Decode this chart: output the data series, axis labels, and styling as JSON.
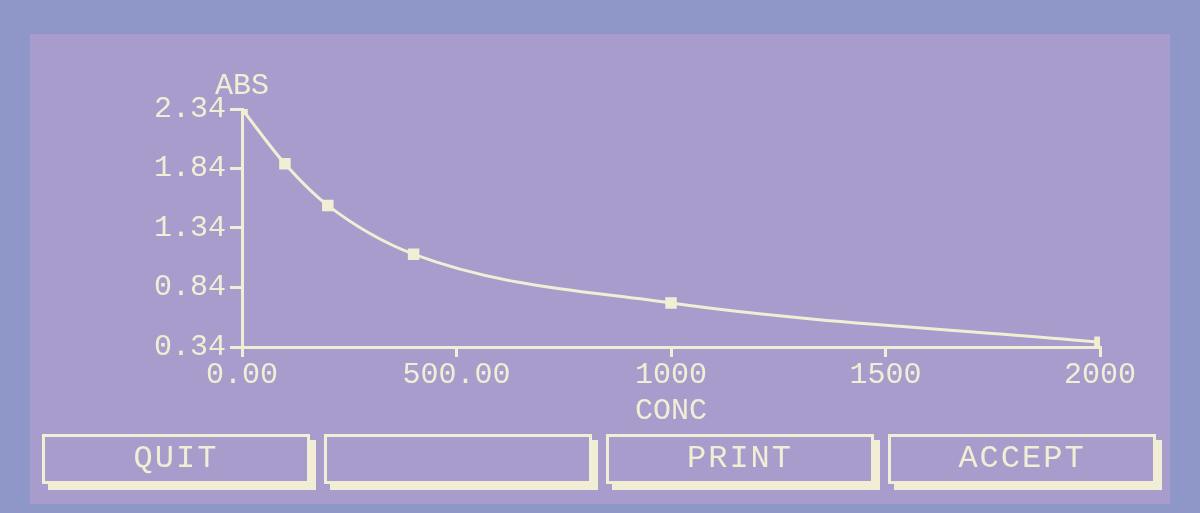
{
  "chart_data": {
    "type": "line",
    "xlabel": "CONC",
    "ylabel": "ABS",
    "x": [
      0,
      100,
      200,
      400,
      1000,
      2000
    ],
    "series": [
      {
        "color": "#f2eed6",
        "values": [
          2.34,
          1.88,
          1.53,
          1.12,
          0.71,
          0.38
        ]
      }
    ],
    "xlim": [
      0,
      2000
    ],
    "xticks": [
      {
        "value": 0,
        "label": "0.00"
      },
      {
        "value": 500,
        "label": "500.00"
      },
      1000,
      1500,
      2000
    ],
    "ylim": [
      0.34,
      2.34
    ],
    "yticks": [
      0.34,
      0.84,
      1.34,
      1.84,
      2.34
    ],
    "grid": false,
    "legend": false,
    "marker": "square",
    "line_style": "solid",
    "annotations": [
      "QUIT",
      "PRINT",
      "ACCEPT"
    ]
  }
}
